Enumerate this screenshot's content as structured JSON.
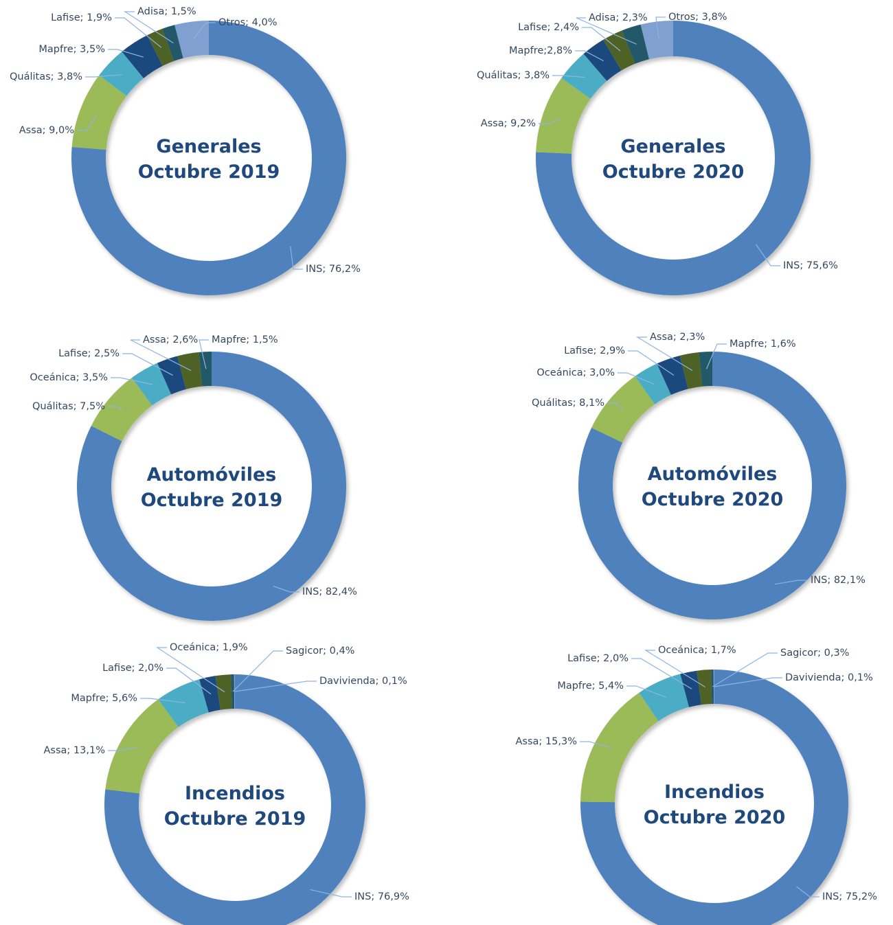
{
  "chart_data": [
    {
      "type": "donut",
      "title": [
        "Generales",
        "Octubre 2019"
      ],
      "values": [
        76.2,
        9.0,
        3.8,
        3.5,
        1.9,
        1.5,
        4.0
      ],
      "value_labels": [
        "INS; 76,2%",
        "Assa; 9,0%",
        "Quálitas; 3,8%",
        "Mapfre; 3,5%",
        "Lafise; 1,9%",
        "Adisa; 1,5%",
        "Otros; 4,0%"
      ],
      "colors": [
        "#4f81bd",
        "#9bbb59",
        "#4bacc6",
        "#1f497d",
        "#4f6228",
        "#215968",
        "#7fa0d0"
      ]
    },
    {
      "type": "donut",
      "title": [
        "Generales",
        "Octubre 2020"
      ],
      "values": [
        75.6,
        9.2,
        3.8,
        2.8,
        2.4,
        2.3,
        3.8
      ],
      "value_labels": [
        "INS; 75,6%",
        "Assa; 9,2%",
        "Quálitas; 3,8%",
        "Mapfre;2,8%",
        "Lafise; 2,4%",
        "Adisa; 2,3%",
        "Otros; 3,8%"
      ],
      "colors": [
        "#4f81bd",
        "#9bbb59",
        "#4bacc6",
        "#1f497d",
        "#4f6228",
        "#215968",
        "#7fa0d0"
      ]
    },
    {
      "type": "donut",
      "title": [
        "Automóviles",
        "Octubre 2019"
      ],
      "values": [
        82.4,
        7.5,
        3.5,
        2.5,
        2.6,
        1.5
      ],
      "value_labels": [
        "INS; 82,4%",
        "Quálitas; 7,5%",
        "Oceánica; 3,5%",
        "Lafise; 2,5%",
        "Assa; 2,6%",
        "Mapfre; 1,5%"
      ],
      "colors": [
        "#4f81bd",
        "#9bbb59",
        "#4bacc6",
        "#1f497d",
        "#4f6228",
        "#215968"
      ]
    },
    {
      "type": "donut",
      "title": [
        "Automóviles",
        "Octubre 2020"
      ],
      "values": [
        82.1,
        8.1,
        3.0,
        2.9,
        2.3,
        1.6
      ],
      "value_labels": [
        "INS; 82,1%",
        "Quálitas; 8,1%",
        "Oceánica; 3,0%",
        "Lafise; 2,9%",
        "Assa; 2,3%",
        "Mapfre; 1,6%"
      ],
      "colors": [
        "#4f81bd",
        "#9bbb59",
        "#4bacc6",
        "#1f497d",
        "#4f6228",
        "#215968"
      ]
    },
    {
      "type": "donut",
      "title": [
        "Incendios",
        "Octubre 2019"
      ],
      "values": [
        76.9,
        13.1,
        5.6,
        2.0,
        1.9,
        0.4,
        0.1
      ],
      "value_labels": [
        "INS; 76,9%",
        "Assa; 13,1%",
        "Mapfre; 5,6%",
        "Lafise; 2,0%",
        "Oceánica; 1,9%",
        "Sagicor; 0,4%",
        "Davivienda; 0,1%"
      ],
      "colors": [
        "#4f81bd",
        "#9bbb59",
        "#4bacc6",
        "#1f497d",
        "#4f6228",
        "#215968",
        "#7fa0d0"
      ]
    },
    {
      "type": "donut",
      "title": [
        "Incendios",
        "Octubre 2020"
      ],
      "values": [
        75.2,
        15.3,
        5.4,
        2.0,
        1.7,
        0.3,
        0.1
      ],
      "value_labels": [
        "INS; 75,2%",
        "Assa; 15,3%",
        "Mapfre; 5,4%",
        "Lafise; 2,0%",
        "Oceánica; 1,7%",
        "Sagicor; 0,3%",
        "Davivienda; 0,1%"
      ],
      "colors": [
        "#4f81bd",
        "#9bbb59",
        "#4bacc6",
        "#1f497d",
        "#4f6228",
        "#215968",
        "#7fa0d0"
      ]
    }
  ]
}
